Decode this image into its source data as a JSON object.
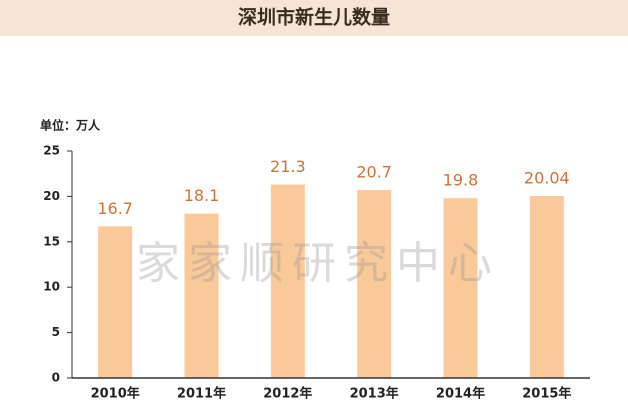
{
  "chart_data": {
    "type": "bar",
    "title": "深圳市新生儿数量",
    "y_unit_label": "单位：万人",
    "watermark": "家家顺研究中心",
    "categories": [
      "2010年",
      "2011年",
      "2012年",
      "2013年",
      "2014年",
      "2015年"
    ],
    "values": [
      16.7,
      18.1,
      21.3,
      20.7,
      19.8,
      20.04
    ],
    "color": "#fac99a",
    "value_label_color": "#c9743c",
    "ylim": [
      0,
      25
    ],
    "yticks": [
      0,
      5,
      10,
      15,
      20,
      25
    ],
    "grid": false
  }
}
